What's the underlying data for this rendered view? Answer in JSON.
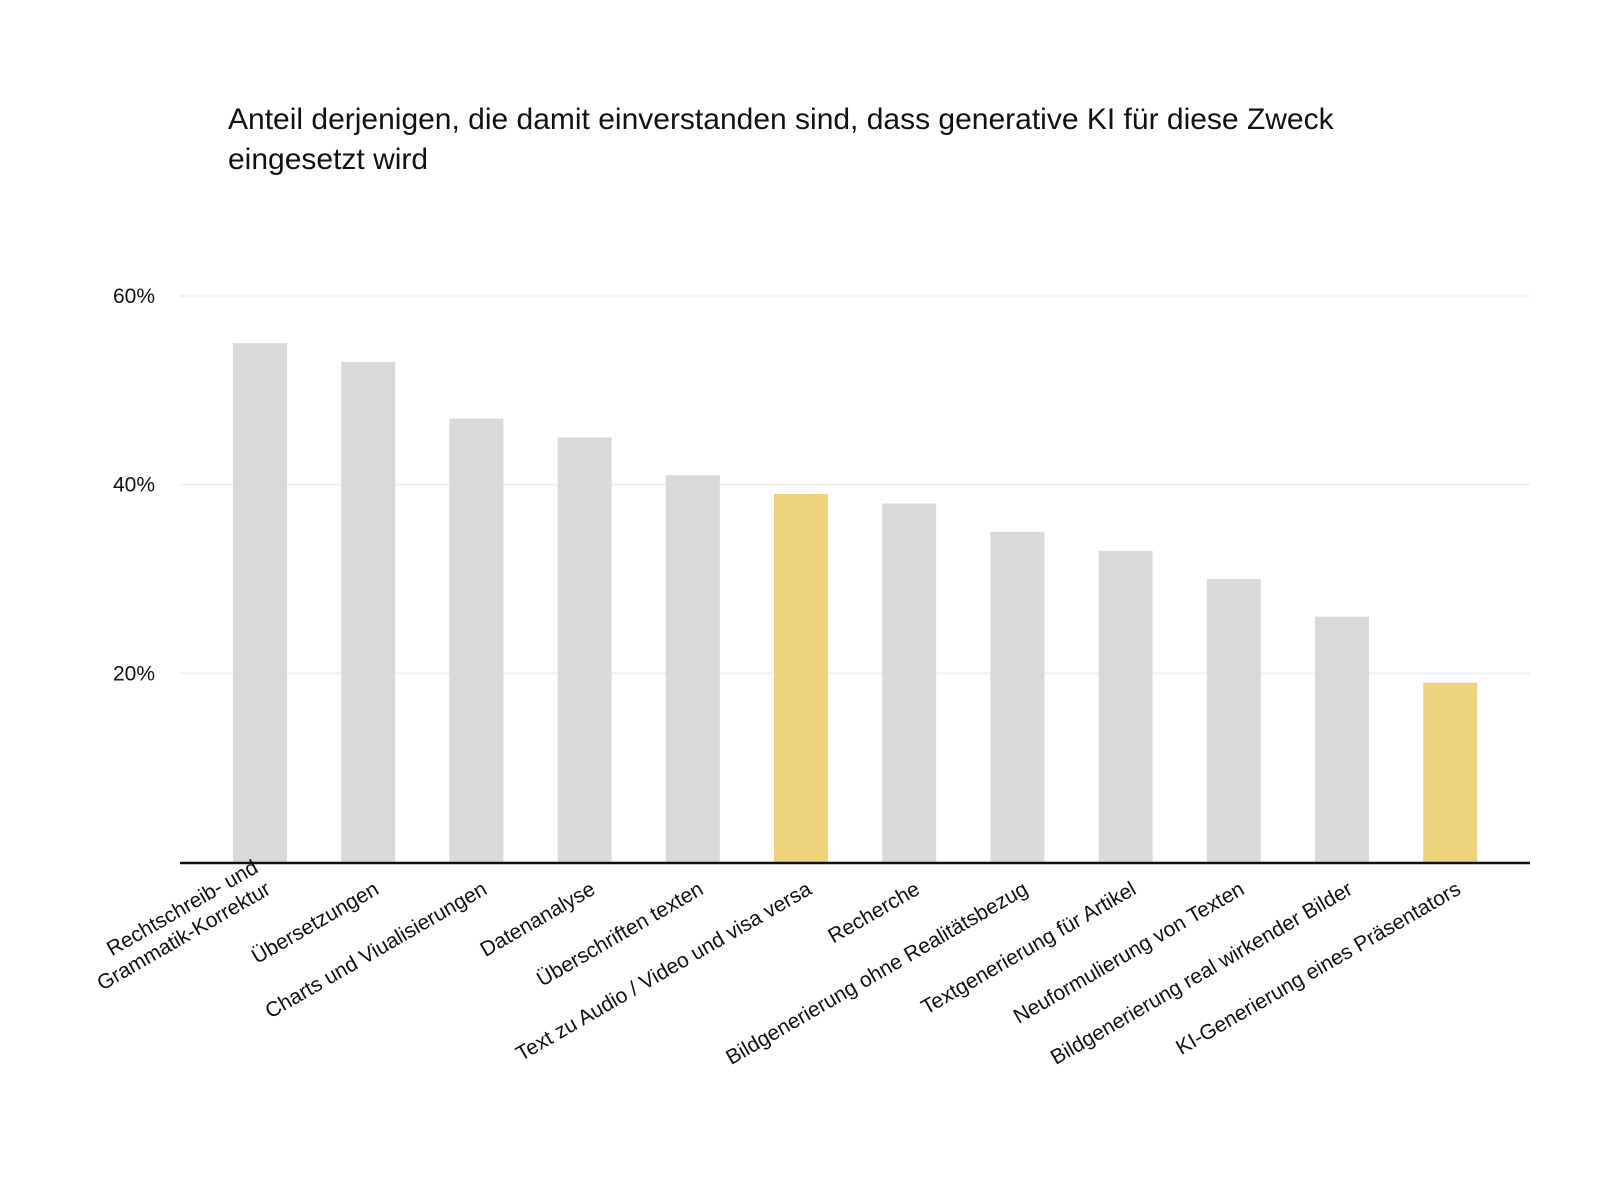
{
  "chart_data": {
    "type": "bar",
    "title": "Anteil derjenigen, die damit einverstanden sind, dass generative KI für diese Zweck eingesetzt wird",
    "xlabel": "",
    "ylabel": "",
    "ylim": [
      0,
      60
    ],
    "yticks": [
      20,
      40,
      60
    ],
    "ytick_labels": [
      "20%",
      "40%",
      "60%"
    ],
    "grid": "horizontal",
    "categories": [
      [
        "Rechtschreib- und",
        "Grammatik-Korrektur"
      ],
      [
        "Übersetzungen"
      ],
      [
        "Charts und Viualisierungen"
      ],
      [
        "Datenanalyse"
      ],
      [
        "Überschriften texten"
      ],
      [
        "Text zu Audio / Video und visa versa"
      ],
      [
        "Recherche"
      ],
      [
        "Bildgenerierung ohne Realitätsbezug"
      ],
      [
        "Textgenerierung für Artikel"
      ],
      [
        "Neuformulierung von Texten"
      ],
      [
        "Bildgenerierung real wirkender Bilder"
      ],
      [
        "KI-Generierung eines Präsentators"
      ]
    ],
    "values": [
      55,
      53,
      47,
      45,
      41,
      39,
      38,
      35,
      33,
      30,
      26,
      19
    ],
    "highlighted": [
      5,
      11
    ],
    "colors": {
      "bar": "#d9d9d9",
      "highlight": "#eed37c",
      "grid": "#f0f0f0",
      "axis": "#111111"
    }
  }
}
